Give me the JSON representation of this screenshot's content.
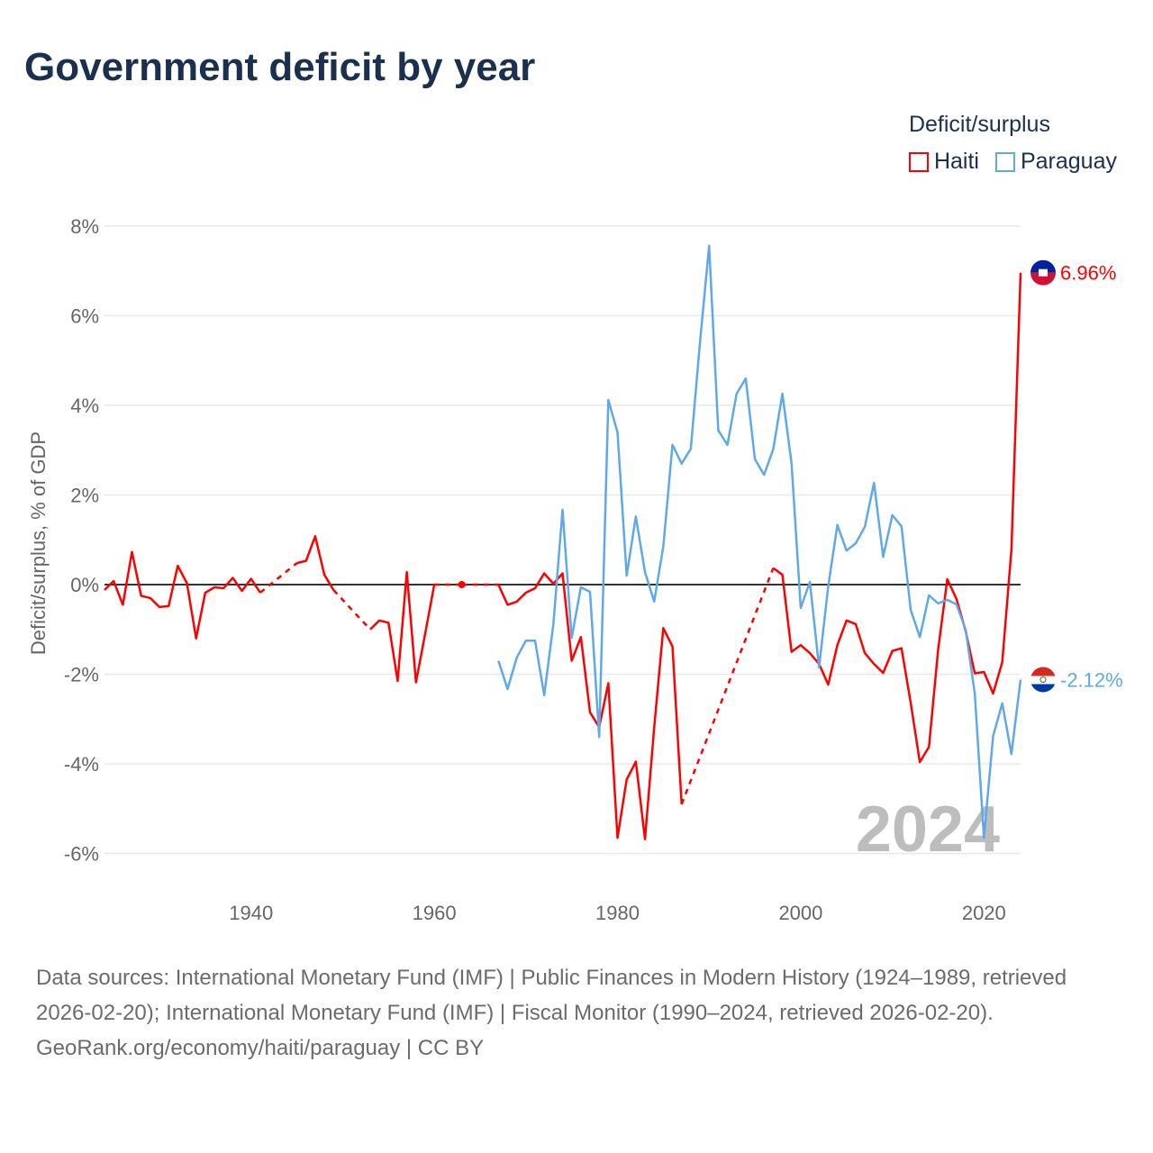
{
  "title": "Government deficit by year",
  "legend": {
    "title": "Deficit/surplus",
    "items": [
      {
        "label": "Haiti",
        "color": "#ff0000"
      },
      {
        "label": "Paraguay",
        "color": "#5fa8ea"
      }
    ]
  },
  "footer": {
    "sources": "Data sources: International Monetary Fund (IMF) | Public Finances in Modern History (1924–1989, retrieved 2026-02-20); International Monetary Fund (IMF) | Fiscal Monitor (1990–2024, retrieved 2026-02-20).",
    "credit": "GeoRank.org/economy/haiti/paraguay | CC BY"
  },
  "chart_data": {
    "type": "line",
    "title": "Government deficit by year",
    "xlabel": "",
    "ylabel": "Deficit/surplus, % of GDP",
    "xlim": [
      1924,
      2024
    ],
    "ylim": [
      -6.6,
      8.4
    ],
    "x_ticks": [
      1940,
      1960,
      1980,
      2000,
      2020
    ],
    "y_ticks": [
      -6,
      -4,
      -2,
      0,
      2,
      4,
      6,
      8
    ],
    "y_tick_labels": [
      "-6%",
      "-4%",
      "-2%",
      "0%",
      "2%",
      "4%",
      "6%",
      "8%"
    ],
    "grid": true,
    "legend_position": "top-right",
    "current_year_label": "2024",
    "end_labels": [
      "6.96%",
      "-2.12%"
    ],
    "x": [
      1924,
      1925,
      1926,
      1927,
      1928,
      1929,
      1930,
      1931,
      1932,
      1933,
      1934,
      1935,
      1936,
      1937,
      1938,
      1939,
      1940,
      1941,
      1942,
      1943,
      1944,
      1945,
      1946,
      1947,
      1948,
      1949,
      1950,
      1951,
      1952,
      1953,
      1954,
      1955,
      1956,
      1957,
      1958,
      1959,
      1960,
      1961,
      1962,
      1963,
      1964,
      1965,
      1966,
      1967,
      1968,
      1969,
      1970,
      1971,
      1972,
      1973,
      1974,
      1975,
      1976,
      1977,
      1978,
      1979,
      1980,
      1981,
      1982,
      1983,
      1984,
      1985,
      1986,
      1987,
      1988,
      1989,
      1990,
      1991,
      1992,
      1993,
      1994,
      1995,
      1996,
      1997,
      1998,
      1999,
      2000,
      2001,
      2002,
      2003,
      2004,
      2005,
      2006,
      2007,
      2008,
      2009,
      2010,
      2011,
      2012,
      2013,
      2014,
      2015,
      2016,
      2017,
      2018,
      2019,
      2020,
      2021,
      2022,
      2023,
      2024
    ],
    "series": [
      {
        "name": "Haiti",
        "color": "#ff0000",
        "values": [
          -0.12,
          0.08,
          -0.45,
          0.73,
          -0.25,
          -0.3,
          -0.5,
          -0.48,
          0.42,
          0.03,
          -1.2,
          -0.18,
          -0.06,
          -0.08,
          0.15,
          -0.14,
          0.13,
          -0.18,
          null,
          null,
          null,
          0.48,
          0.53,
          1.08,
          0.22,
          -0.12,
          null,
          null,
          null,
          -1.0,
          -0.8,
          -0.85,
          -2.15,
          0.28,
          -2.18,
          -1.1,
          0.0,
          null,
          null,
          0.0,
          null,
          null,
          null,
          0.0,
          -0.45,
          -0.38,
          -0.18,
          -0.08,
          0.25,
          0.02,
          0.25,
          -1.7,
          -1.17,
          -2.85,
          -3.18,
          -2.2,
          -5.65,
          -4.35,
          -3.95,
          -5.68,
          -3.2,
          -0.97,
          -1.38,
          -4.9,
          null,
          null,
          null,
          null,
          null,
          null,
          null,
          null,
          null,
          0.37,
          0.22,
          -1.5,
          -1.35,
          -1.53,
          -1.77,
          -2.23,
          -1.35,
          -0.8,
          -0.88,
          -1.53,
          -1.77,
          -1.97,
          -1.48,
          -1.42,
          -2.63,
          -3.96,
          -3.62,
          -1.45,
          0.12,
          -0.32,
          -1.03,
          -1.98,
          -1.95,
          -2.43,
          -1.73,
          0.78,
          6.96
        ]
      },
      {
        "name": "Paraguay",
        "color": "#5fa8ea",
        "values": [
          null,
          null,
          null,
          null,
          null,
          null,
          null,
          null,
          null,
          null,
          null,
          null,
          null,
          null,
          null,
          null,
          null,
          null,
          null,
          null,
          null,
          null,
          null,
          null,
          null,
          null,
          null,
          null,
          null,
          null,
          null,
          null,
          null,
          null,
          null,
          null,
          null,
          null,
          null,
          null,
          null,
          null,
          null,
          -1.7,
          -2.33,
          -1.63,
          -1.25,
          -1.25,
          -2.47,
          -0.88,
          1.67,
          -1.19,
          -0.06,
          -0.16,
          -3.4,
          4.12,
          3.4,
          0.2,
          1.52,
          0.28,
          -0.38,
          0.85,
          3.12,
          2.7,
          3.03,
          5.4,
          7.56,
          3.44,
          3.12,
          4.26,
          4.6,
          2.8,
          2.45,
          3.02,
          4.26,
          2.7,
          -0.52,
          0.06,
          -1.85,
          -0.04,
          1.33,
          0.76,
          0.92,
          1.29,
          2.27,
          0.62,
          1.55,
          1.3,
          -0.56,
          -1.17,
          -0.24,
          -0.42,
          -0.34,
          -0.44,
          -1.0,
          -2.43,
          -5.65,
          -3.38,
          -2.65,
          -3.78,
          -2.12
        ]
      }
    ]
  }
}
